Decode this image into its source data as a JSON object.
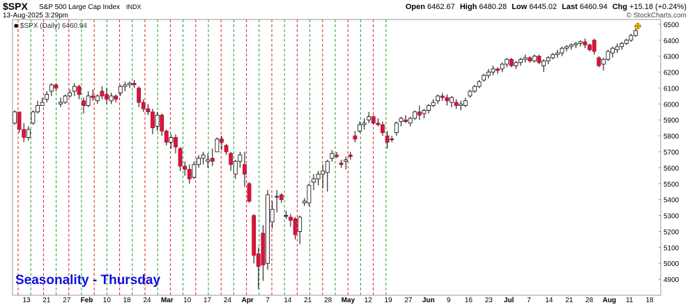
{
  "header": {
    "symbol": "$SPX",
    "name": "S&P 500 Large Cap Index",
    "exchange": "INDX",
    "date": "13-Aug-2025 3:29pm",
    "copyright": "© StockCharts.com",
    "legend": "$SPX (Daily) 6460.94",
    "open_label": "Open",
    "open": "6462.67",
    "high_label": "High",
    "high": "6480.28",
    "low_label": "Low",
    "low": "6445.02",
    "last_label": "Last",
    "last": "6460.94",
    "chg_label": "Chg",
    "chg": "+15.18 (+0.24%)"
  },
  "annotation": "Seasonality - Thursday",
  "colors": {
    "up_candle": "#ffffff",
    "down_candle": "#e0123c",
    "thursday_green": "#22a022",
    "other_red": "#d81e1e",
    "annotation_blue": "#1010e0",
    "current_marker": "#e8e820"
  },
  "chart_data": {
    "type": "candlestick",
    "title": "$SPX (Daily)",
    "y_ticks": [
      4900,
      5000,
      5100,
      5200,
      5300,
      5400,
      5500,
      5600,
      5700,
      5800,
      5900,
      6000,
      6100,
      6200,
      6300,
      6400,
      6500
    ],
    "ylim": [
      4800,
      6530
    ],
    "x_tick_labels": [
      "13",
      "21",
      "27",
      "Feb",
      "10",
      "18",
      "24",
      "Mar",
      "10",
      "17",
      "24",
      "Apr",
      "7",
      "14",
      "21",
      "28",
      "May",
      "12",
      "19",
      "27",
      "Jun",
      "9",
      "16",
      "23",
      "Jul",
      "7",
      "14",
      "21",
      "28",
      "Aug",
      "11",
      "18"
    ],
    "grid": "vertical dashed lines: green on Thursdays, red otherwise",
    "series": [
      {
        "values": [
          [
            5880,
            5960,
            5870,
            5950
          ],
          [
            5950,
            5950,
            5820,
            5840
          ],
          [
            5840,
            5880,
            5760,
            5790
          ],
          [
            5790,
            5860,
            5770,
            5840
          ],
          [
            5880,
            5960,
            5870,
            5950
          ],
          [
            5950,
            6020,
            5940,
            5990
          ],
          [
            5990,
            6040,
            5990,
            6010
          ],
          [
            6030,
            6080,
            6010,
            6060
          ],
          [
            6080,
            6130,
            6050,
            6120
          ],
          [
            6120,
            6130,
            6080,
            6100
          ],
          [
            6000,
            6040,
            5980,
            6010
          ],
          [
            6010,
            6060,
            6000,
            6050
          ],
          [
            6050,
            6090,
            6040,
            6070
          ],
          [
            6080,
            6130,
            6050,
            6110
          ],
          [
            6110,
            6120,
            6030,
            6060
          ],
          [
            6020,
            6040,
            5940,
            5990
          ],
          [
            5990,
            6080,
            5980,
            6050
          ],
          [
            6050,
            6090,
            6020,
            6040
          ],
          [
            6020,
            6060,
            6000,
            6050
          ],
          [
            6080,
            6110,
            6030,
            6050
          ],
          [
            6060,
            6100,
            6000,
            6030
          ],
          [
            6020,
            6070,
            6000,
            6050
          ],
          [
            6050,
            6060,
            6010,
            6030
          ],
          [
            6070,
            6120,
            6050,
            6110
          ],
          [
            6110,
            6140,
            6080,
            6120
          ],
          [
            6120,
            6140,
            6100,
            6130
          ],
          [
            6130,
            6150,
            6100,
            6120
          ],
          [
            6100,
            6110,
            5980,
            6010
          ],
          [
            6010,
            6030,
            5950,
            5970
          ],
          [
            5970,
            6000,
            5930,
            5950
          ],
          [
            5950,
            5970,
            5810,
            5850
          ],
          [
            5860,
            5950,
            5830,
            5930
          ],
          [
            5930,
            5940,
            5800,
            5830
          ],
          [
            5830,
            5840,
            5740,
            5760
          ],
          [
            5760,
            5810,
            5720,
            5790
          ],
          [
            5790,
            5810,
            5690,
            5730
          ],
          [
            5720,
            5730,
            5580,
            5610
          ],
          [
            5610,
            5640,
            5550,
            5590
          ],
          [
            5590,
            5620,
            5500,
            5530
          ],
          [
            5540,
            5640,
            5530,
            5620
          ],
          [
            5620,
            5680,
            5600,
            5660
          ],
          [
            5660,
            5700,
            5620,
            5680
          ],
          [
            5640,
            5690,
            5600,
            5650
          ],
          [
            5660,
            5720,
            5610,
            5640
          ],
          [
            5700,
            5790,
            5700,
            5780
          ],
          [
            5780,
            5800,
            5710,
            5760
          ],
          [
            5740,
            5750,
            5680,
            5700
          ],
          [
            5690,
            5700,
            5580,
            5620
          ],
          [
            5560,
            5650,
            5530,
            5640
          ],
          [
            5640,
            5700,
            5600,
            5680
          ],
          [
            5620,
            5700,
            5480,
            5560
          ],
          [
            5500,
            5510,
            5380,
            5390
          ],
          [
            5300,
            5310,
            5000,
            5050
          ],
          [
            5060,
            5100,
            4840,
            4980
          ],
          [
            5190,
            5240,
            4890,
            4990
          ],
          [
            5000,
            5460,
            4960,
            5430
          ],
          [
            5260,
            5390,
            5220,
            5340
          ],
          [
            5420,
            5460,
            5320,
            5420
          ],
          [
            5430,
            5440,
            5380,
            5400
          ],
          [
            5300,
            5330,
            5280,
            5300
          ],
          [
            5290,
            5310,
            5230,
            5270
          ],
          [
            5280,
            5290,
            5150,
            5180
          ],
          [
            5200,
            5300,
            5120,
            5290
          ],
          [
            5380,
            5410,
            5360,
            5390
          ],
          [
            5380,
            5500,
            5360,
            5490
          ],
          [
            5510,
            5560,
            5460,
            5530
          ],
          [
            5530,
            5580,
            5490,
            5560
          ],
          [
            5560,
            5620,
            5470,
            5580
          ],
          [
            5570,
            5650,
            5450,
            5640
          ],
          [
            5660,
            5710,
            5640,
            5690
          ],
          [
            5680,
            5700,
            5660,
            5670
          ],
          [
            5630,
            5650,
            5600,
            5620
          ],
          [
            5640,
            5670,
            5590,
            5650
          ],
          [
            5680,
            5700,
            5650,
            5670
          ],
          [
            5800,
            5830,
            5760,
            5780
          ],
          [
            5830,
            5890,
            5820,
            5870
          ],
          [
            5870,
            5910,
            5840,
            5880
          ],
          [
            5900,
            5950,
            5880,
            5920
          ],
          [
            5920,
            5930,
            5870,
            5880
          ],
          [
            5880,
            5910,
            5860,
            5870
          ],
          [
            5870,
            5890,
            5800,
            5820
          ],
          [
            5800,
            5830,
            5720,
            5760
          ],
          [
            5780,
            5800,
            5760,
            5780
          ],
          [
            5820,
            5890,
            5800,
            5880
          ],
          [
            5890,
            5920,
            5860,
            5910
          ],
          [
            5900,
            5930,
            5880,
            5890
          ],
          [
            5880,
            5920,
            5860,
            5910
          ],
          [
            5910,
            5960,
            5900,
            5950
          ],
          [
            5950,
            5990,
            5900,
            5930
          ],
          [
            5940,
            5970,
            5910,
            5960
          ],
          [
            5960,
            6000,
            5940,
            5990
          ],
          [
            5990,
            6030,
            5980,
            6010
          ],
          [
            6020,
            6060,
            6000,
            6050
          ],
          [
            6050,
            6070,
            6020,
            6040
          ],
          [
            6040,
            6060,
            5990,
            6020
          ],
          [
            6010,
            6050,
            5980,
            6040
          ],
          [
            6010,
            6030,
            5970,
            5990
          ],
          [
            5990,
            6020,
            5960,
            6000
          ],
          [
            5990,
            6040,
            5980,
            6020
          ],
          [
            6050,
            6090,
            6040,
            6080
          ],
          [
            6080,
            6120,
            6070,
            6110
          ],
          [
            6110,
            6150,
            6100,
            6140
          ],
          [
            6150,
            6190,
            6140,
            6180
          ],
          [
            6180,
            6220,
            6160,
            6200
          ],
          [
            6200,
            6240,
            6180,
            6220
          ],
          [
            6220,
            6230,
            6190,
            6210
          ],
          [
            6220,
            6260,
            6200,
            6250
          ],
          [
            6250,
            6290,
            6230,
            6280
          ],
          [
            6280,
            6290,
            6230,
            6240
          ],
          [
            6240,
            6270,
            6220,
            6260
          ],
          [
            6260,
            6290,
            6240,
            6280
          ],
          [
            6280,
            6310,
            6260,
            6290
          ],
          [
            6290,
            6300,
            6260,
            6270
          ],
          [
            6270,
            6310,
            6260,
            6300
          ],
          [
            6300,
            6310,
            6250,
            6260
          ],
          [
            6240,
            6280,
            6200,
            6270
          ],
          [
            6270,
            6300,
            6250,
            6290
          ],
          [
            6290,
            6320,
            6280,
            6310
          ],
          [
            6310,
            6340,
            6290,
            6320
          ],
          [
            6320,
            6360,
            6300,
            6350
          ],
          [
            6350,
            6370,
            6330,
            6360
          ],
          [
            6360,
            6380,
            6340,
            6370
          ],
          [
            6370,
            6390,
            6350,
            6380
          ],
          [
            6380,
            6400,
            6360,
            6390
          ],
          [
            6390,
            6410,
            6350,
            6370
          ],
          [
            6370,
            6380,
            6330,
            6340
          ],
          [
            6400,
            6410,
            6310,
            6330
          ],
          [
            6290,
            6300,
            6230,
            6240
          ],
          [
            6250,
            6290,
            6210,
            6280
          ],
          [
            6280,
            6340,
            6270,
            6330
          ],
          [
            6320,
            6360,
            6290,
            6350
          ],
          [
            6340,
            6380,
            6320,
            6360
          ],
          [
            6360,
            6390,
            6340,
            6380
          ],
          [
            6380,
            6410,
            6370,
            6400
          ],
          [
            6400,
            6440,
            6390,
            6430
          ],
          [
            6430,
            6480,
            6420,
            6460
          ]
        ]
      }
    ]
  }
}
